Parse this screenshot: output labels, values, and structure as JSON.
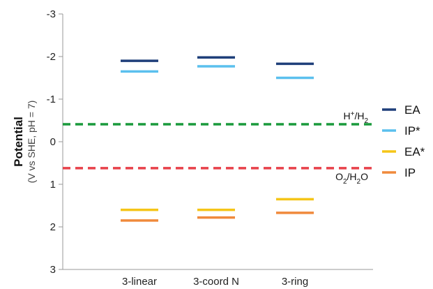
{
  "chart_data": {
    "type": "line",
    "title": "",
    "xlabel": "",
    "ylabel": "Potential",
    "ylabel_sub": "(V vs SHE, pH = 7)",
    "y_axis": {
      "min": -3,
      "max": 3,
      "inverted": true,
      "ticks": [
        "-3",
        "-2",
        "-1",
        "0",
        "1",
        "2",
        "3"
      ]
    },
    "categories": [
      "3-linear",
      "3-coord N",
      "3-ring"
    ],
    "series": [
      {
        "name": "EA",
        "color": "#1f3f7a",
        "values": [
          -1.9,
          -1.98,
          -1.83
        ]
      },
      {
        "name": "IP*",
        "color": "#5bc0ee",
        "values": [
          -1.65,
          -1.77,
          -1.5
        ]
      },
      {
        "name": "EA*",
        "color": "#f5c518",
        "values": [
          1.6,
          1.6,
          1.35
        ]
      },
      {
        "name": "IP",
        "color": "#f08a3c",
        "values": [
          1.85,
          1.78,
          1.67
        ]
      }
    ],
    "reference_lines": [
      {
        "label_main": "H",
        "label_sup": "+",
        "label_rest": "/H",
        "label_sub": "2",
        "value": -0.41,
        "color": "#1a9a3c"
      },
      {
        "label_main": "O",
        "label_sub": "2",
        "label_rest": "/H",
        "label_sub2": "2",
        "label_end": "O",
        "value": 0.62,
        "color": "#e8414a"
      }
    ],
    "legend_position": "right",
    "grid": false
  }
}
